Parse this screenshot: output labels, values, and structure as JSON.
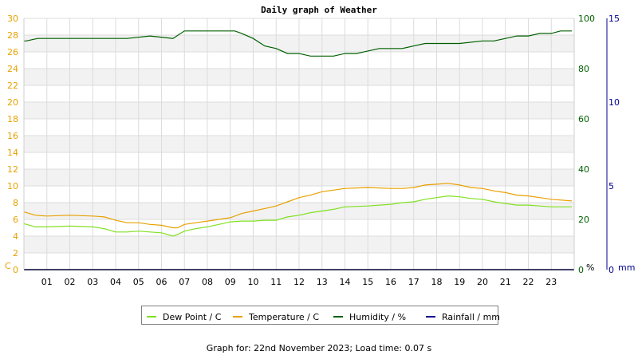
{
  "chart_data": {
    "type": "line",
    "title": "Daily graph of Weather",
    "x_ticks": [
      "01",
      "02",
      "03",
      "04",
      "05",
      "06",
      "07",
      "08",
      "09",
      "10",
      "11",
      "12",
      "13",
      "14",
      "15",
      "16",
      "17",
      "18",
      "19",
      "20",
      "21",
      "22",
      "23"
    ],
    "xlim": [
      0,
      24
    ],
    "axes": {
      "left": {
        "unit_label": "C",
        "ylim": [
          0,
          30
        ],
        "ticks": [
          0,
          2,
          4,
          6,
          8,
          10,
          12,
          14,
          16,
          18,
          20,
          22,
          24,
          26,
          28,
          30
        ],
        "color": "#e8a000"
      },
      "right1": {
        "unit_label": "%",
        "ylim": [
          0,
          100
        ],
        "ticks": [
          0,
          20,
          40,
          60,
          80,
          100
        ],
        "color": "#006000"
      },
      "right2": {
        "unit_label": "mm",
        "ylim": [
          0,
          15
        ],
        "ticks": [
          0,
          5,
          10,
          15
        ],
        "color": "#000090"
      }
    },
    "series": [
      {
        "name": "Dew Point / C",
        "axis": "left",
        "color": "#80e020",
        "x": [
          0,
          0.5,
          1,
          2,
          3,
          3.5,
          4,
          4.5,
          5,
          5.5,
          6,
          6.5,
          6.7,
          7,
          7.5,
          8,
          8.5,
          9,
          9.5,
          10,
          10.5,
          11,
          11.5,
          12,
          12.5,
          13,
          13.5,
          14,
          15,
          16,
          16.5,
          17,
          17.5,
          18,
          18.5,
          19,
          19.5,
          20,
          20.5,
          21,
          21.5,
          22,
          22.5,
          23,
          23.9
        ],
        "y": [
          5.5,
          5.1,
          5.1,
          5.2,
          5.1,
          4.9,
          4.5,
          4.5,
          4.6,
          4.5,
          4.4,
          4.0,
          4.2,
          4.6,
          4.9,
          5.1,
          5.4,
          5.7,
          5.8,
          5.8,
          5.9,
          5.9,
          6.3,
          6.5,
          6.8,
          7.0,
          7.2,
          7.5,
          7.6,
          7.8,
          8.0,
          8.1,
          8.4,
          8.6,
          8.8,
          8.7,
          8.5,
          8.4,
          8.1,
          7.9,
          7.7,
          7.7,
          7.6,
          7.5,
          7.5
        ]
      },
      {
        "name": "Temperature / C",
        "axis": "left",
        "color": "#e8a000",
        "x": [
          0,
          0.5,
          1,
          2,
          3,
          3.5,
          4,
          4.5,
          5,
          5.5,
          6,
          6.5,
          6.7,
          7,
          7.5,
          8,
          8.5,
          9,
          9.5,
          10,
          10.5,
          11,
          11.5,
          12,
          12.5,
          13,
          13.5,
          14,
          15,
          16,
          16.5,
          17,
          17.5,
          18,
          18.5,
          19,
          19.5,
          20,
          20.5,
          21,
          21.5,
          22,
          22.5,
          23,
          23.9
        ],
        "y": [
          6.9,
          6.5,
          6.4,
          6.5,
          6.4,
          6.3,
          5.9,
          5.6,
          5.6,
          5.4,
          5.3,
          5.0,
          5.0,
          5.4,
          5.6,
          5.8,
          6.0,
          6.2,
          6.7,
          7.0,
          7.3,
          7.6,
          8.1,
          8.6,
          8.9,
          9.3,
          9.5,
          9.7,
          9.8,
          9.7,
          9.7,
          9.8,
          10.1,
          10.2,
          10.3,
          10.1,
          9.8,
          9.7,
          9.4,
          9.2,
          8.9,
          8.8,
          8.6,
          8.4,
          8.2
        ]
      },
      {
        "name": "Humidity / %",
        "axis": "right1",
        "color": "#006000",
        "x": [
          0,
          0.1,
          0.6,
          4.5,
          5.5,
          6.5,
          7,
          9.2,
          9.5,
          10,
          10.5,
          11,
          11.5,
          12,
          12.5,
          13,
          13.5,
          14,
          14.5,
          15,
          15.5,
          16,
          16.5,
          17,
          17.5,
          18,
          19,
          20,
          20.5,
          21,
          21.5,
          22,
          22.5,
          23,
          23.4,
          23.9
        ],
        "y": [
          91,
          91,
          92,
          92,
          93,
          92,
          95,
          95,
          94,
          92,
          89,
          88,
          86,
          86,
          85,
          85,
          85,
          86,
          86,
          87,
          88,
          88,
          88,
          89,
          90,
          90,
          90,
          91,
          91,
          92,
          93,
          93,
          94,
          94,
          95,
          95
        ]
      },
      {
        "name": "Rainfall / mm",
        "axis": "right2",
        "color": "#000090",
        "x": [
          0,
          24
        ],
        "y": [
          0,
          0
        ]
      }
    ],
    "grid": true,
    "legend_position": "bottom",
    "footer": "Graph for: 22nd November 2023; Load time: 0.07 s"
  }
}
